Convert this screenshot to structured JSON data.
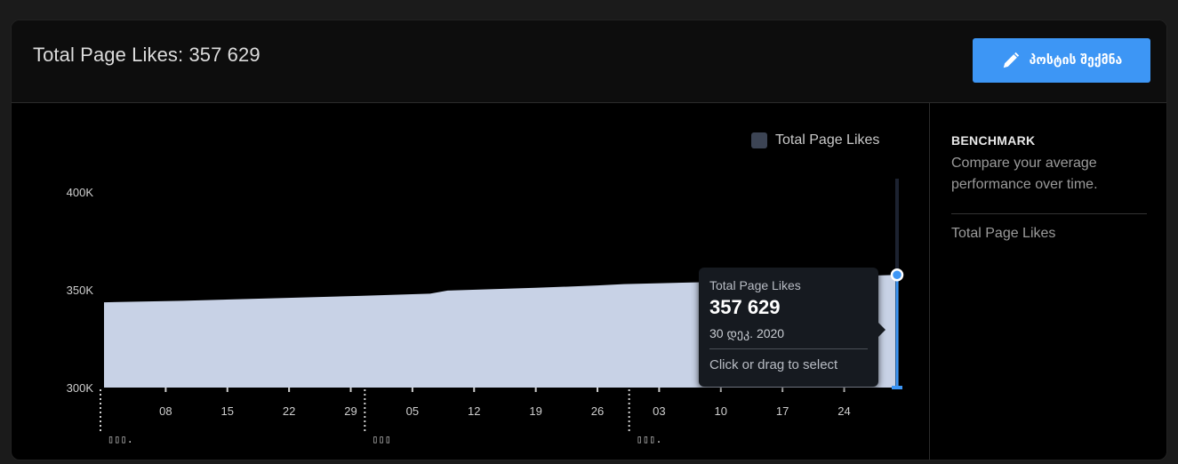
{
  "header": {
    "title": "Total Page Likes: 357 629",
    "create_post_label": "პოსტის შექმნა"
  },
  "benchmark": {
    "title": "BENCHMARK",
    "description": "Compare your average performance over time.",
    "metric": "Total Page Likes"
  },
  "colors": {
    "area_fill": "#c8d2e6",
    "accent": "#3d96f5",
    "legend_swatch": "#3c4454"
  },
  "tooltip": {
    "series": "Total Page Likes",
    "value": "357 629",
    "date": "30 დეკ. 2020",
    "hint": "Click or drag to select"
  },
  "chart_data": {
    "type": "area",
    "title": "",
    "xlabel": "",
    "ylabel": "",
    "ylim": [
      300000,
      400000
    ],
    "y_ticks": [
      300000,
      350000,
      400000
    ],
    "y_tick_labels": [
      "300K",
      "350K",
      "400K"
    ],
    "x_day_range": [
      1,
      91
    ],
    "x_ticks": [
      {
        "day": 8,
        "label": "08"
      },
      {
        "day": 15,
        "label": "15"
      },
      {
        "day": 22,
        "label": "22"
      },
      {
        "day": 29,
        "label": "29"
      },
      {
        "day": 36,
        "label": "05"
      },
      {
        "day": 43,
        "label": "12"
      },
      {
        "day": 50,
        "label": "19"
      },
      {
        "day": 57,
        "label": "26"
      },
      {
        "day": 64,
        "label": "03"
      },
      {
        "day": 71,
        "label": "10"
      },
      {
        "day": 78,
        "label": "17"
      },
      {
        "day": 85,
        "label": "24"
      }
    ],
    "month_markers": [
      {
        "day": 1,
        "label": "▯▯▯."
      },
      {
        "day": 31,
        "label": "▯▯▯"
      },
      {
        "day": 61,
        "label": "▯▯▯."
      }
    ],
    "grid": false,
    "legend": {
      "position": "top-right",
      "label": "Total Page Likes"
    },
    "series": [
      {
        "name": "Total Page Likes",
        "x": [
          1,
          10,
          20,
          30,
          38,
          40,
          50,
          57,
          60,
          70,
          76,
          80,
          86,
          91
        ],
        "values": [
          343600,
          344400,
          345600,
          346900,
          348000,
          349600,
          351000,
          352200,
          352900,
          354000,
          355000,
          356000,
          357000,
          357629
        ]
      }
    ],
    "highlight": {
      "day": 91,
      "value": 357629
    }
  }
}
